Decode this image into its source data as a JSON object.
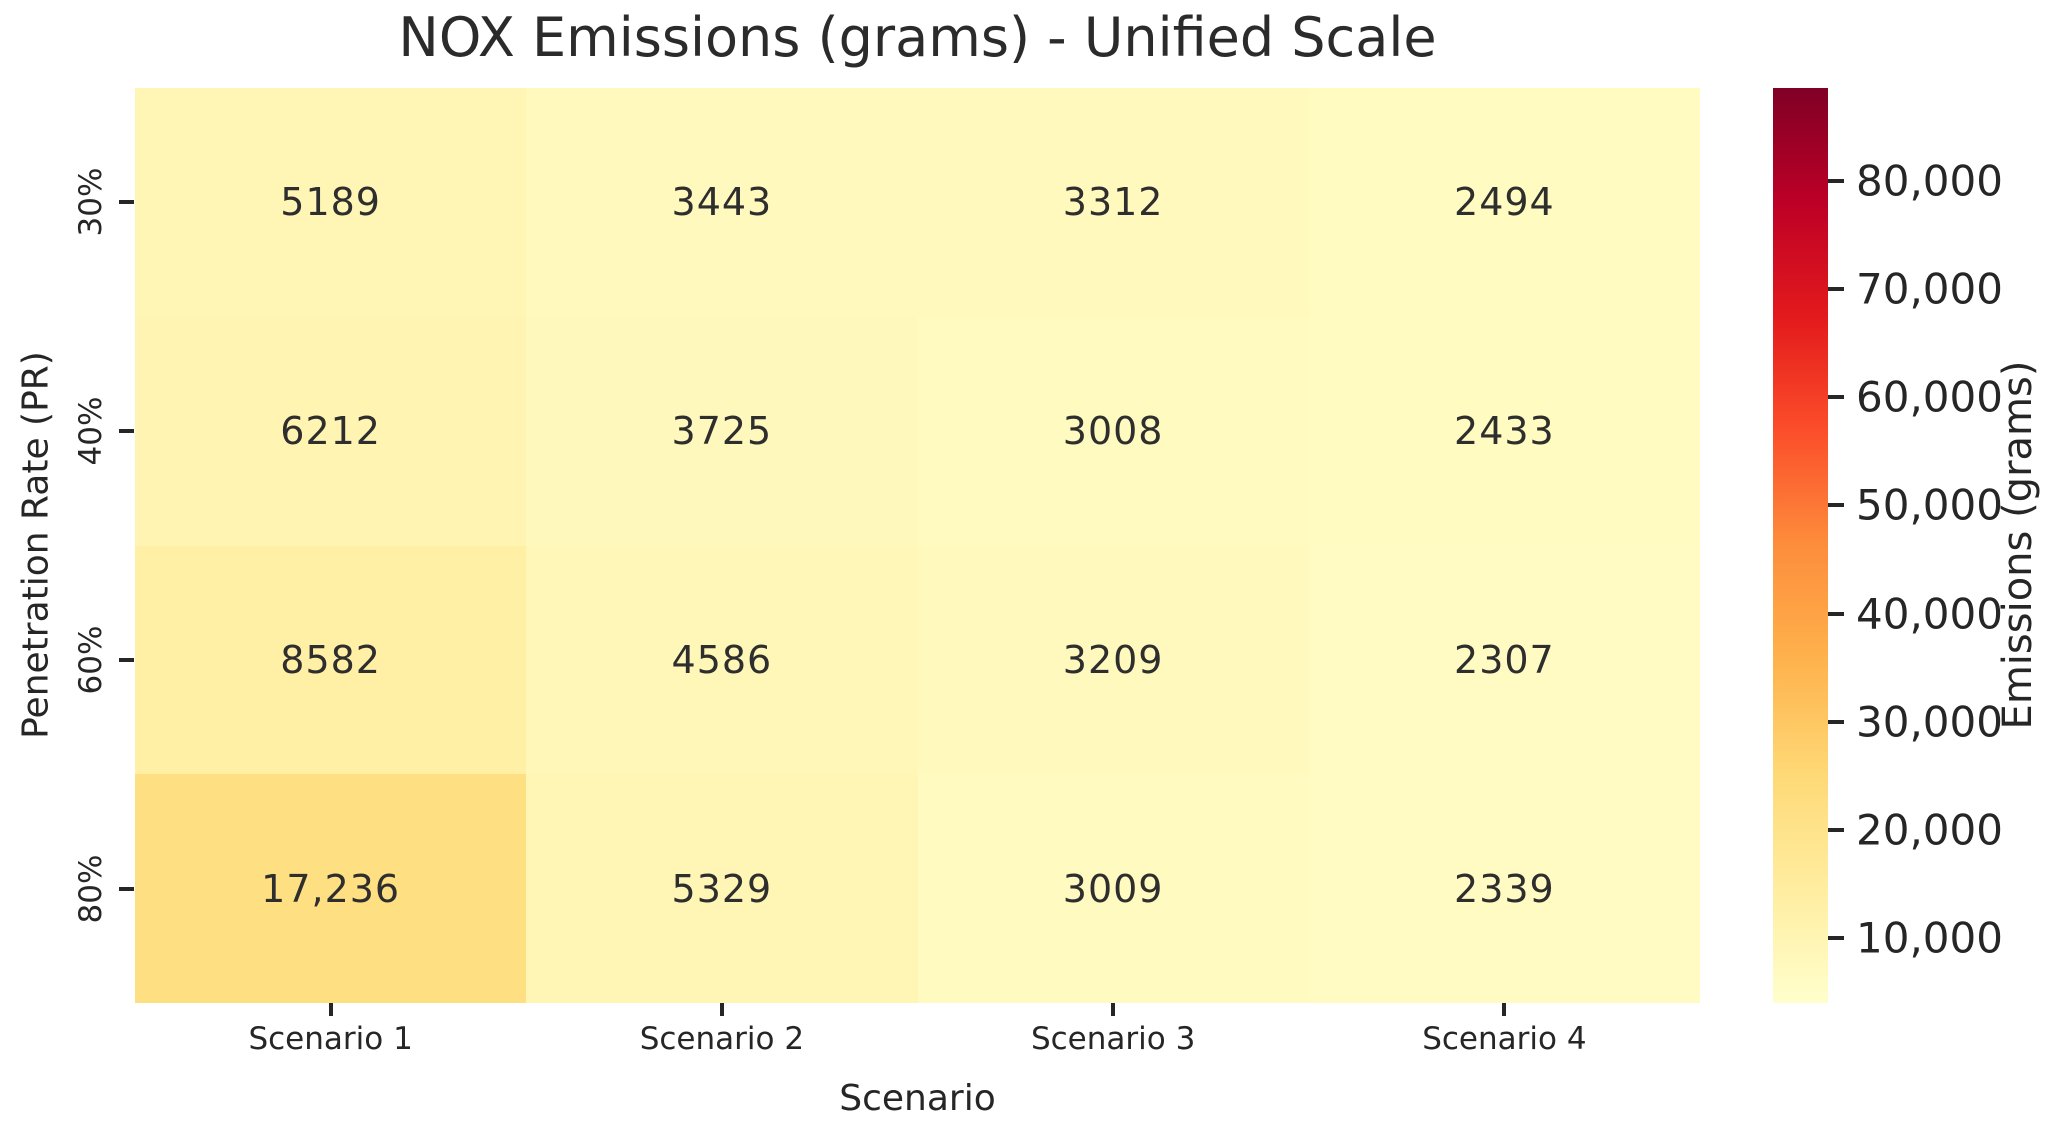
{
  "title": "NOX Emissions (grams) - Unified Scale",
  "chart_data": {
    "type": "heatmap",
    "title": "NOX Emissions (grams) - Unified Scale",
    "xlabel": "Scenario",
    "ylabel": "Penetration Rate (PR)",
    "x_categories": [
      "Scenario 1",
      "Scenario 2",
      "Scenario 3",
      "Scenario 4"
    ],
    "y_categories": [
      "30%",
      "40%",
      "60%",
      "80%"
    ],
    "values": [
      [
        5189,
        3443,
        3312,
        2494
      ],
      [
        6212,
        3725,
        3008,
        2433
      ],
      [
        8582,
        4586,
        3209,
        2307
      ],
      [
        17236,
        5329,
        3009,
        2339
      ]
    ],
    "value_labels": [
      [
        "5189",
        "3443",
        "3312",
        "2494"
      ],
      [
        "6212",
        "3725",
        "3008",
        "2433"
      ],
      [
        "8582",
        "4586",
        "3209",
        "2307"
      ],
      [
        "17,236",
        "5329",
        "3009",
        "2339"
      ]
    ],
    "colormap": {
      "name": "YlOrRd",
      "stops": [
        "#ffffcc",
        "#ffeda0",
        "#fed976",
        "#feb24c",
        "#fd8d3c",
        "#fc4e2a",
        "#e31a1c",
        "#bd0026",
        "#800026"
      ],
      "cell_vmin": 0,
      "cell_vmax": 80000
    },
    "colorbar": {
      "label": "Emissions (grams)",
      "ticks": [
        10000,
        20000,
        30000,
        40000,
        50000,
        60000,
        70000,
        80000
      ],
      "tick_labels": [
        "10,000",
        "20,000",
        "30,000",
        "40,000",
        "50,000",
        "60,000",
        "70,000",
        "80,000"
      ],
      "range_min": 4000,
      "range_max": 88600,
      "position": "right"
    },
    "grid": false,
    "annotations": true
  },
  "colors": {
    "background": "#ffffff",
    "text": "#262626",
    "title_text": "#2b2b2b"
  }
}
